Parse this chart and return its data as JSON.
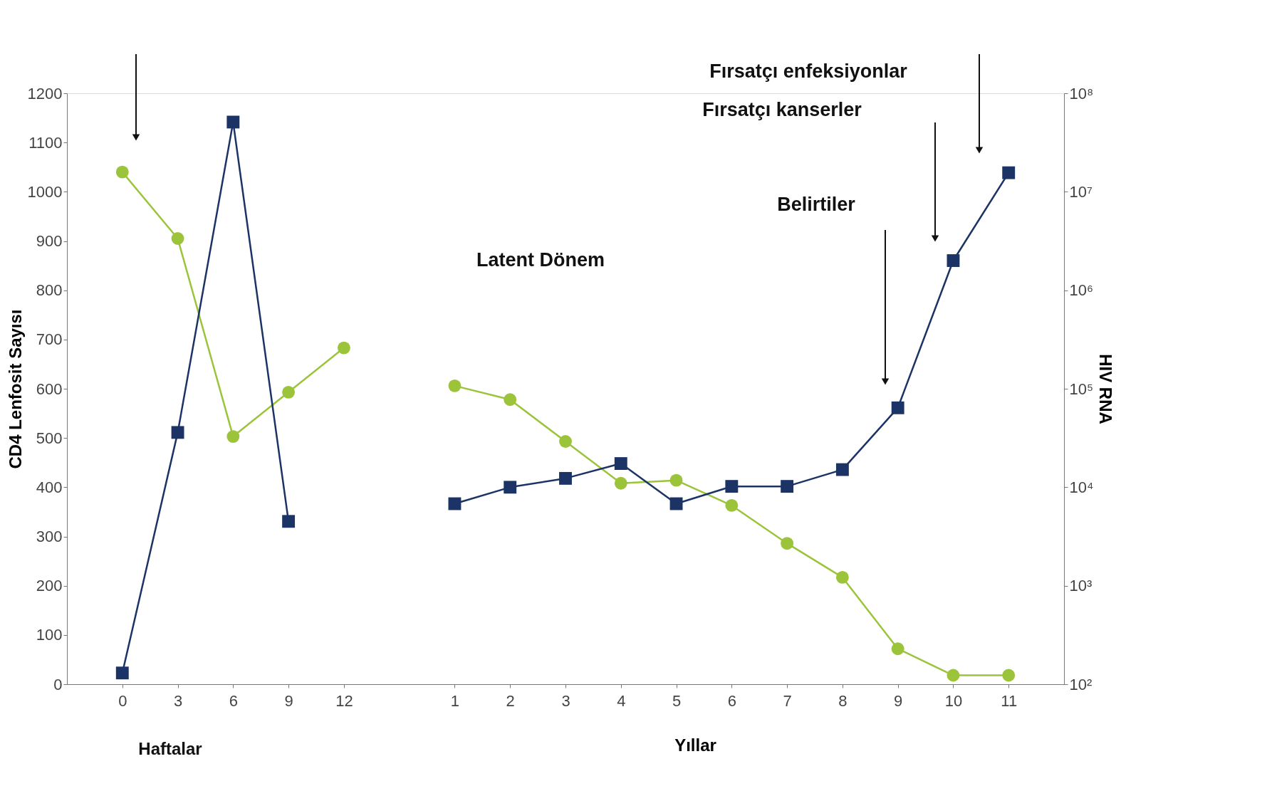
{
  "chart_data": {
    "type": "line",
    "xlabel": "Yıllar",
    "ylabel": "CD4 Lenfosit Sayısı",
    "y2label": "HIV RNA",
    "categories": [
      "0",
      "3",
      "6",
      "9",
      "12",
      null,
      "1",
      "2",
      "3",
      "4",
      "5",
      "6",
      "7",
      "8",
      "9",
      "10",
      "11"
    ],
    "ylim": [
      0,
      1200
    ],
    "yticks": [
      0,
      100,
      200,
      300,
      400,
      500,
      600,
      700,
      800,
      900,
      1000,
      1100,
      1200
    ],
    "y2lim": [
      100,
      100000000
    ],
    "y2ticks": [
      {
        "value": 100,
        "label": "10²"
      },
      {
        "value": 1000,
        "label": "10³"
      },
      {
        "value": 10000,
        "label": "10⁴"
      },
      {
        "value": 100000,
        "label": "10⁵"
      },
      {
        "value": 1000000,
        "label": "10⁶"
      },
      {
        "value": 10000000,
        "label": "10⁷"
      },
      {
        "value": 100000000,
        "label": "10⁸"
      }
    ],
    "log": "y2",
    "grid": false,
    "series": [
      {
        "color": "#9cc43a",
        "marker": "circle",
        "values": [
          1040,
          905,
          503,
          593,
          683,
          null,
          606,
          578,
          493,
          408,
          414,
          363,
          286,
          217,
          72,
          18,
          18
        ]
      },
      {
        "color": "#1c3366",
        "marker": "square",
        "axis": "y2",
        "values": [
          130,
          36000,
          51000000,
          4500,
          null,
          null,
          6800,
          10000,
          12300,
          17400,
          6800,
          10200,
          10200,
          15100,
          64000,
          2000000,
          15600000
        ]
      }
    ],
    "annotations": [
      "Haftalar",
      "Latent Dönem",
      "Belirtiler",
      "Fırsatçı kanserler",
      "Fırsatçı enfeksiyonlar"
    ]
  }
}
